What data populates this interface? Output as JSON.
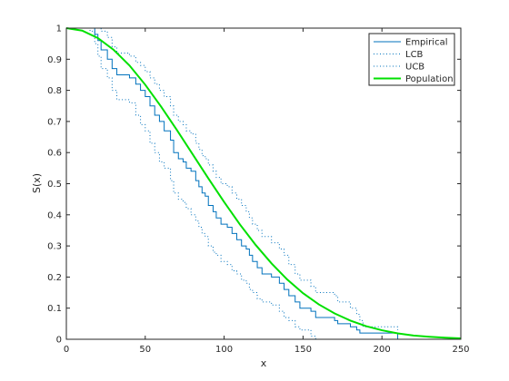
{
  "chart_data": {
    "type": "line",
    "title": "",
    "xlabel": "x",
    "ylabel": "S(x)",
    "xlim": [
      0,
      250
    ],
    "ylim": [
      0,
      1
    ],
    "xticks": [
      "0",
      "50",
      "100",
      "150",
      "200",
      "250"
    ],
    "yticks": [
      "0",
      "0.1",
      "0.2",
      "0.3",
      "0.4",
      "0.5",
      "0.6",
      "0.7",
      "0.8",
      "0.9",
      "1"
    ],
    "grid": false,
    "legend_position": "top-right",
    "series": [
      {
        "name": "Empirical",
        "style": "step-solid",
        "color": "#0072bd",
        "points": [
          [
            0,
            1
          ],
          [
            18,
            1
          ],
          [
            18,
            0.98
          ],
          [
            20,
            0.96
          ],
          [
            22,
            0.93
          ],
          [
            26,
            0.9
          ],
          [
            29,
            0.87
          ],
          [
            32,
            0.85
          ],
          [
            40,
            0.84
          ],
          [
            44,
            0.82
          ],
          [
            47,
            0.8
          ],
          [
            50,
            0.78
          ],
          [
            53,
            0.75
          ],
          [
            56,
            0.72
          ],
          [
            59,
            0.7
          ],
          [
            62,
            0.67
          ],
          [
            66,
            0.64
          ],
          [
            68,
            0.6
          ],
          [
            71,
            0.58
          ],
          [
            74,
            0.57
          ],
          [
            76,
            0.55
          ],
          [
            79,
            0.54
          ],
          [
            82,
            0.51
          ],
          [
            84,
            0.49
          ],
          [
            86,
            0.47
          ],
          [
            88,
            0.46
          ],
          [
            90,
            0.43
          ],
          [
            93,
            0.41
          ],
          [
            95,
            0.39
          ],
          [
            98,
            0.37
          ],
          [
            102,
            0.36
          ],
          [
            105,
            0.34
          ],
          [
            108,
            0.32
          ],
          [
            111,
            0.3
          ],
          [
            114,
            0.29
          ],
          [
            116,
            0.27
          ],
          [
            118,
            0.25
          ],
          [
            121,
            0.23
          ],
          [
            124,
            0.21
          ],
          [
            130,
            0.2
          ],
          [
            135,
            0.18
          ],
          [
            138,
            0.16
          ],
          [
            141,
            0.14
          ],
          [
            145,
            0.12
          ],
          [
            148,
            0.1
          ],
          [
            155,
            0.09
          ],
          [
            158,
            0.07
          ],
          [
            170,
            0.06
          ],
          [
            172,
            0.05
          ],
          [
            180,
            0.04
          ],
          [
            184,
            0.03
          ],
          [
            186,
            0.02
          ],
          [
            210,
            0.02
          ],
          [
            210,
            0
          ]
        ]
      },
      {
        "name": "LCB",
        "style": "step-dotted",
        "color": "#0072bd",
        "points": [
          [
            0,
            1
          ],
          [
            15,
            0.99
          ],
          [
            18,
            0.95
          ],
          [
            20,
            0.91
          ],
          [
            22,
            0.87
          ],
          [
            26,
            0.84
          ],
          [
            29,
            0.8
          ],
          [
            32,
            0.77
          ],
          [
            40,
            0.76
          ],
          [
            44,
            0.72
          ],
          [
            47,
            0.69
          ],
          [
            50,
            0.67
          ],
          [
            53,
            0.63
          ],
          [
            56,
            0.6
          ],
          [
            59,
            0.57
          ],
          [
            62,
            0.55
          ],
          [
            66,
            0.51
          ],
          [
            68,
            0.47
          ],
          [
            71,
            0.45
          ],
          [
            74,
            0.44
          ],
          [
            76,
            0.42
          ],
          [
            79,
            0.4
          ],
          [
            82,
            0.38
          ],
          [
            84,
            0.36
          ],
          [
            86,
            0.34
          ],
          [
            88,
            0.33
          ],
          [
            90,
            0.3
          ],
          [
            93,
            0.28
          ],
          [
            95,
            0.27
          ],
          [
            98,
            0.25
          ],
          [
            102,
            0.24
          ],
          [
            105,
            0.22
          ],
          [
            108,
            0.21
          ],
          [
            111,
            0.19
          ],
          [
            114,
            0.18
          ],
          [
            116,
            0.16
          ],
          [
            118,
            0.15
          ],
          [
            121,
            0.13
          ],
          [
            124,
            0.12
          ],
          [
            130,
            0.11
          ],
          [
            135,
            0.09
          ],
          [
            138,
            0.07
          ],
          [
            141,
            0.06
          ],
          [
            145,
            0.04
          ],
          [
            148,
            0.03
          ],
          [
            155,
            0.01
          ],
          [
            158,
            0
          ],
          [
            250,
            0
          ]
        ]
      },
      {
        "name": "UCB",
        "style": "step-dotted",
        "color": "#0072bd",
        "points": [
          [
            0,
            1
          ],
          [
            18,
            1
          ],
          [
            22,
            0.99
          ],
          [
            26,
            0.97
          ],
          [
            29,
            0.94
          ],
          [
            32,
            0.92
          ],
          [
            40,
            0.91
          ],
          [
            44,
            0.89
          ],
          [
            47,
            0.88
          ],
          [
            50,
            0.86
          ],
          [
            53,
            0.84
          ],
          [
            56,
            0.82
          ],
          [
            59,
            0.8
          ],
          [
            62,
            0.78
          ],
          [
            66,
            0.75
          ],
          [
            68,
            0.72
          ],
          [
            71,
            0.7
          ],
          [
            74,
            0.69
          ],
          [
            76,
            0.67
          ],
          [
            79,
            0.66
          ],
          [
            82,
            0.63
          ],
          [
            84,
            0.61
          ],
          [
            86,
            0.59
          ],
          [
            88,
            0.58
          ],
          [
            90,
            0.56
          ],
          [
            93,
            0.54
          ],
          [
            95,
            0.52
          ],
          [
            98,
            0.5
          ],
          [
            102,
            0.49
          ],
          [
            105,
            0.47
          ],
          [
            108,
            0.45
          ],
          [
            111,
            0.43
          ],
          [
            114,
            0.41
          ],
          [
            116,
            0.39
          ],
          [
            118,
            0.37
          ],
          [
            121,
            0.35
          ],
          [
            124,
            0.33
          ],
          [
            130,
            0.31
          ],
          [
            135,
            0.29
          ],
          [
            138,
            0.27
          ],
          [
            141,
            0.24
          ],
          [
            145,
            0.21
          ],
          [
            148,
            0.19
          ],
          [
            155,
            0.17
          ],
          [
            158,
            0.15
          ],
          [
            170,
            0.14
          ],
          [
            172,
            0.12
          ],
          [
            180,
            0.1
          ],
          [
            184,
            0.08
          ],
          [
            186,
            0.06
          ],
          [
            188,
            0.04
          ],
          [
            210,
            0.04
          ],
          [
            210,
            0.03
          ]
        ]
      },
      {
        "name": "Population",
        "style": "smooth-solid",
        "color": "#00e000",
        "points": [
          [
            0,
            1
          ],
          [
            10,
            0.992
          ],
          [
            20,
            0.968
          ],
          [
            30,
            0.93
          ],
          [
            40,
            0.88
          ],
          [
            50,
            0.818
          ],
          [
            60,
            0.748
          ],
          [
            70,
            0.673
          ],
          [
            80,
            0.595
          ],
          [
            90,
            0.517
          ],
          [
            100,
            0.441
          ],
          [
            110,
            0.369
          ],
          [
            120,
            0.303
          ],
          [
            130,
            0.244
          ],
          [
            140,
            0.192
          ],
          [
            150,
            0.148
          ],
          [
            160,
            0.112
          ],
          [
            170,
            0.083
          ],
          [
            180,
            0.06
          ],
          [
            190,
            0.042
          ],
          [
            200,
            0.029
          ],
          [
            210,
            0.019
          ],
          [
            220,
            0.012
          ],
          [
            230,
            0.008
          ],
          [
            240,
            0.005
          ],
          [
            250,
            0.003
          ]
        ]
      }
    ]
  }
}
